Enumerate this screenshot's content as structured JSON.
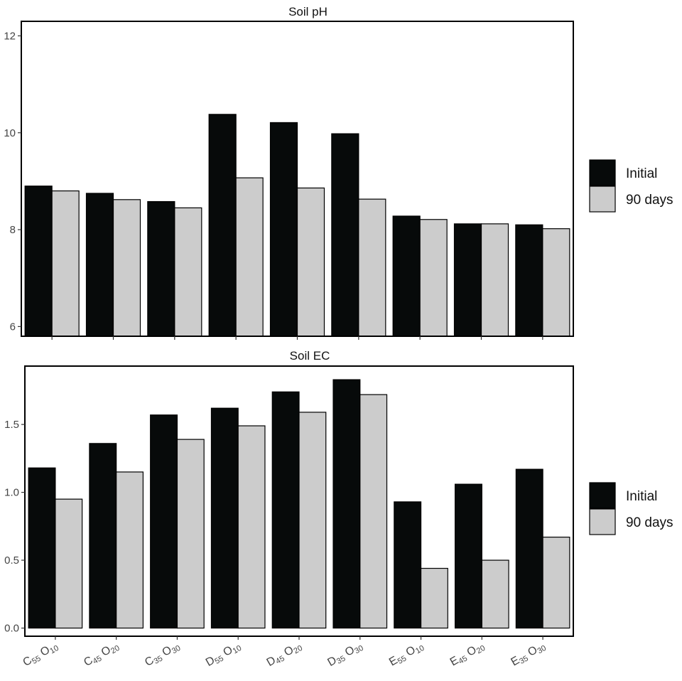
{
  "chart_data": [
    {
      "type": "bar",
      "title": "Soil pH",
      "categories": [
        {
          "letter": "C",
          "sub1": "55",
          "o": "O",
          "sub2": "10"
        },
        {
          "letter": "C",
          "sub1": "45",
          "o": "O",
          "sub2": "20"
        },
        {
          "letter": "C",
          "sub1": "35",
          "o": "O",
          "sub2": "30"
        },
        {
          "letter": "D",
          "sub1": "55",
          "o": "O",
          "sub2": "10"
        },
        {
          "letter": "D",
          "sub1": "45",
          "o": "O",
          "sub2": "20"
        },
        {
          "letter": "D",
          "sub1": "35",
          "o": "O",
          "sub2": "30"
        },
        {
          "letter": "E",
          "sub1": "55",
          "o": "O",
          "sub2": "10"
        },
        {
          "letter": "E",
          "sub1": "45",
          "o": "O",
          "sub2": "20"
        },
        {
          "letter": "E",
          "sub1": "35",
          "o": "O",
          "sub2": "30"
        }
      ],
      "series": [
        {
          "name": "Initial",
          "color": "#070a0a",
          "values": [
            8.9,
            8.75,
            8.58,
            10.38,
            10.21,
            9.98,
            8.28,
            8.12,
            8.1
          ]
        },
        {
          "name": "90 days",
          "color": "#cccccc",
          "values": [
            8.8,
            8.62,
            8.45,
            9.07,
            8.86,
            8.63,
            8.21,
            8.12,
            8.02
          ]
        }
      ],
      "ylim": [
        5.8,
        12.3
      ],
      "yticks": [
        6,
        8,
        10,
        12
      ],
      "ytick_labels": [
        "6",
        "8",
        "10",
        "12"
      ],
      "xlabel": "",
      "ylabel": "",
      "grid": false,
      "legend_position": "right"
    },
    {
      "type": "bar",
      "title": "Soil EC",
      "categories": [
        {
          "letter": "C",
          "sub1": "55",
          "o": "O",
          "sub2": "10"
        },
        {
          "letter": "C",
          "sub1": "45",
          "o": "O",
          "sub2": "20"
        },
        {
          "letter": "C",
          "sub1": "35",
          "o": "O",
          "sub2": "30"
        },
        {
          "letter": "D",
          "sub1": "55",
          "o": "O",
          "sub2": "10"
        },
        {
          "letter": "D",
          "sub1": "45",
          "o": "O",
          "sub2": "20"
        },
        {
          "letter": "D",
          "sub1": "35",
          "o": "O",
          "sub2": "30"
        },
        {
          "letter": "E",
          "sub1": "55",
          "o": "O",
          "sub2": "10"
        },
        {
          "letter": "E",
          "sub1": "45",
          "o": "O",
          "sub2": "20"
        },
        {
          "letter": "E",
          "sub1": "35",
          "o": "O",
          "sub2": "30"
        }
      ],
      "series": [
        {
          "name": "Initial",
          "color": "#070a0a",
          "values": [
            1.18,
            1.36,
            1.57,
            1.62,
            1.74,
            1.83,
            0.93,
            1.06,
            1.17
          ]
        },
        {
          "name": "90 days",
          "color": "#cccccc",
          "values": [
            0.95,
            1.15,
            1.39,
            1.49,
            1.59,
            1.72,
            0.44,
            0.5,
            0.67
          ]
        }
      ],
      "ylim": [
        -0.06,
        1.93
      ],
      "yticks": [
        0.0,
        0.5,
        1.0,
        1.5
      ],
      "ytick_labels": [
        "0.0",
        "0.5",
        "1.0",
        "1.5"
      ],
      "xlabel": "",
      "ylabel": "",
      "grid": false,
      "legend_position": "right"
    }
  ]
}
